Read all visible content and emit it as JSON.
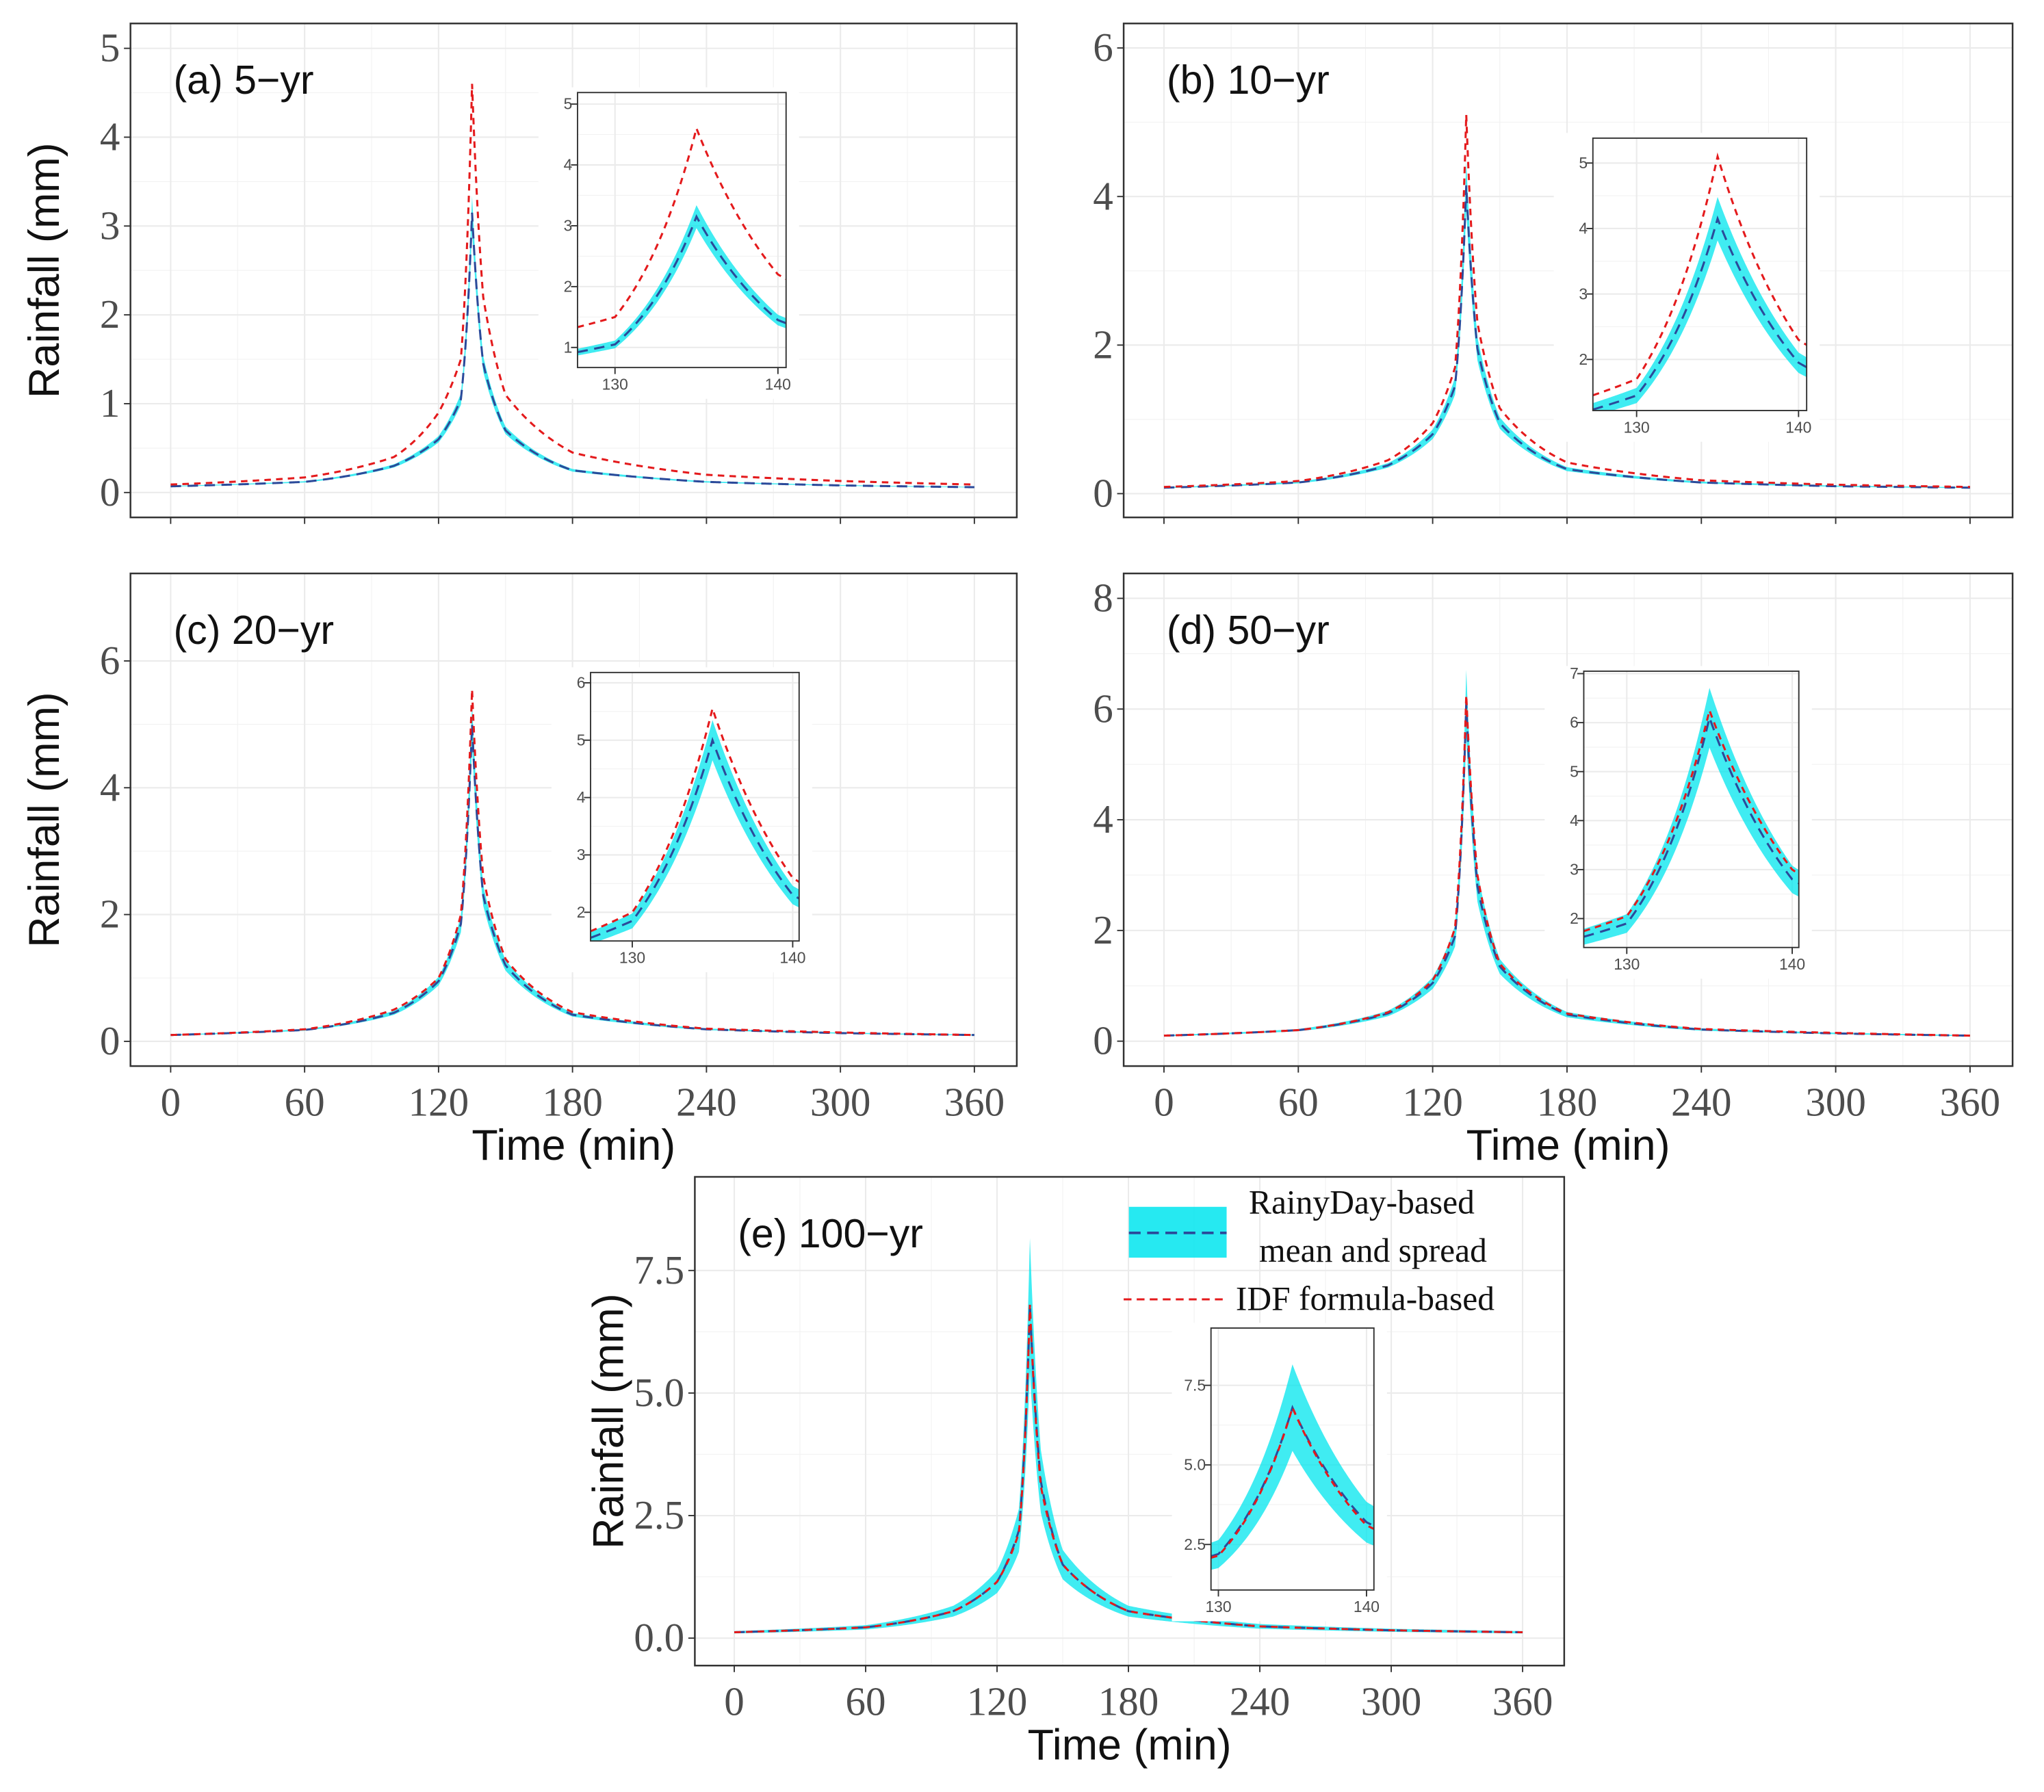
{
  "legend": {
    "rainyday_line1": "RainyDay-based",
    "rainyday_line2": "mean and spread",
    "idf": "IDF formula-based"
  },
  "colors": {
    "band": "#00e5ee",
    "mean": "#2b4a9a",
    "idf": "#e41a1c",
    "grid": "#ebebeb",
    "axis_text": "#4d4d4d"
  },
  "chart_data": [
    {
      "panel": "a",
      "type": "line",
      "title": "(a) 5−yr",
      "xlabel": "",
      "ylabel": "Rainfall (mm)",
      "xlim": [
        -18,
        379
      ],
      "ylim": [
        -0.28,
        5.28
      ],
      "xticks": [
        0,
        60,
        120,
        180,
        240,
        300,
        360
      ],
      "xtick_labels": [],
      "yticks": [
        0,
        1,
        2,
        3,
        4,
        5
      ],
      "ytick_labels": [
        "0",
        "1",
        "2",
        "3",
        "4",
        "5"
      ],
      "x": [
        0,
        60,
        100,
        120,
        130,
        135,
        140,
        150,
        180,
        240,
        300,
        360
      ],
      "series": [
        {
          "name": "RainyDay-based mean",
          "y": [
            0.07,
            0.12,
            0.3,
            0.6,
            1.05,
            3.15,
            1.45,
            0.7,
            0.25,
            0.12,
            0.08,
            0.06
          ]
        },
        {
          "name": "IDF formula-based",
          "y": [
            0.09,
            0.17,
            0.4,
            0.9,
            1.5,
            4.6,
            2.2,
            1.1,
            0.45,
            0.2,
            0.13,
            0.09
          ]
        }
      ],
      "spread_fraction": 0.06,
      "inset": {
        "xlim": [
          127.7,
          140.5
        ],
        "ylim": [
          0.67,
          5.19
        ],
        "xticks": [
          130,
          140
        ],
        "xtick_labels": [
          "130",
          "140"
        ],
        "yticks": [
          1,
          2,
          3,
          4,
          5
        ],
        "ytick_labels": [
          "1",
          "2",
          "3",
          "4",
          "5"
        ]
      }
    },
    {
      "panel": "b",
      "type": "line",
      "title": "(b) 10−yr",
      "xlabel": "",
      "ylabel": "",
      "xlim": [
        -18,
        379
      ],
      "ylim": [
        -0.32,
        6.33
      ],
      "xticks": [
        0,
        60,
        120,
        180,
        240,
        300,
        360
      ],
      "xtick_labels": [],
      "yticks": [
        0,
        2,
        4,
        6
      ],
      "ytick_labels": [
        "0",
        "2",
        "4",
        "6"
      ],
      "x": [
        0,
        60,
        100,
        120,
        130,
        135,
        140,
        150,
        180,
        240,
        300,
        360
      ],
      "series": [
        {
          "name": "RainyDay-based mean",
          "y": [
            0.08,
            0.15,
            0.38,
            0.8,
            1.45,
            4.15,
            1.95,
            0.95,
            0.33,
            0.15,
            0.1,
            0.08
          ]
        },
        {
          "name": "IDF formula-based",
          "y": [
            0.09,
            0.17,
            0.45,
            0.95,
            1.7,
            5.1,
            2.3,
            1.15,
            0.42,
            0.18,
            0.12,
            0.09
          ]
        }
      ],
      "spread_fraction": 0.08,
      "inset": {
        "xlim": [
          127.3,
          140.5
        ],
        "ylim": [
          1.22,
          5.38
        ],
        "xticks": [
          130,
          140
        ],
        "xtick_labels": [
          "130",
          "140"
        ],
        "yticks": [
          2,
          3,
          4,
          5
        ],
        "ytick_labels": [
          "2",
          "3",
          "4",
          "5"
        ]
      }
    },
    {
      "panel": "c",
      "type": "line",
      "title": "(c) 20−yr",
      "xlabel": "Time (min)",
      "ylabel": "Rainfall (mm)",
      "xlim": [
        -18,
        379
      ],
      "ylim": [
        -0.39,
        7.38
      ],
      "xticks": [
        0,
        60,
        120,
        180,
        240,
        300,
        360
      ],
      "xtick_labels": [
        "0",
        "60",
        "120",
        "180",
        "240",
        "300",
        "360"
      ],
      "yticks": [
        0,
        2,
        4,
        6
      ],
      "ytick_labels": [
        "0",
        "2",
        "4",
        "6"
      ],
      "x": [
        0,
        60,
        100,
        120,
        130,
        135,
        140,
        150,
        180,
        240,
        300,
        360
      ],
      "series": [
        {
          "name": "RainyDay-based mean",
          "y": [
            0.1,
            0.18,
            0.45,
            0.95,
            1.85,
            5.0,
            2.3,
            1.2,
            0.42,
            0.19,
            0.13,
            0.1
          ]
        },
        {
          "name": "IDF formula-based",
          "y": [
            0.1,
            0.19,
            0.5,
            1.0,
            2.0,
            5.55,
            2.6,
            1.3,
            0.46,
            0.2,
            0.14,
            0.1
          ]
        }
      ],
      "spread_fraction": 0.07,
      "inset": {
        "xlim": [
          127.4,
          140.4
        ],
        "ylim": [
          1.5,
          6.18
        ],
        "xticks": [
          130,
          140
        ],
        "xtick_labels": [
          "130",
          "140"
        ],
        "yticks": [
          2,
          3,
          4,
          5,
          6
        ],
        "ytick_labels": [
          "2",
          "3",
          "4",
          "5",
          "6"
        ]
      }
    },
    {
      "panel": "d",
      "type": "line",
      "title": "(d) 50−yr",
      "xlabel": "Time (min)",
      "ylabel": "",
      "xlim": [
        -18,
        379
      ],
      "ylim": [
        -0.45,
        8.45
      ],
      "xticks": [
        0,
        60,
        120,
        180,
        240,
        300,
        360
      ],
      "xtick_labels": [
        "0",
        "60",
        "120",
        "180",
        "240",
        "300",
        "360"
      ],
      "yticks": [
        0,
        2,
        4,
        6,
        8
      ],
      "ytick_labels": [
        "0",
        "2",
        "4",
        "6",
        "8"
      ],
      "x": [
        0,
        60,
        100,
        120,
        130,
        135,
        140,
        150,
        180,
        240,
        300,
        360
      ],
      "series": [
        {
          "name": "RainyDay-based mean",
          "y": [
            0.1,
            0.2,
            0.5,
            1.05,
            1.9,
            6.1,
            2.8,
            1.35,
            0.48,
            0.21,
            0.14,
            0.1
          ]
        },
        {
          "name": "IDF formula-based",
          "y": [
            0.1,
            0.2,
            0.52,
            1.1,
            2.05,
            6.25,
            3.0,
            1.4,
            0.5,
            0.22,
            0.15,
            0.1
          ]
        }
      ],
      "spread_fraction": 0.1,
      "inset": {
        "xlim": [
          127.4,
          140.4
        ],
        "ylim": [
          1.41,
          7.05
        ],
        "xticks": [
          130,
          140
        ],
        "xtick_labels": [
          "130",
          "140"
        ],
        "yticks": [
          2,
          3,
          4,
          5,
          6,
          7
        ],
        "ytick_labels": [
          "2",
          "3",
          "4",
          "5",
          "6",
          "7"
        ]
      }
    },
    {
      "panel": "e",
      "type": "line",
      "title": "(e) 100−yr",
      "xlabel": "Time (min)",
      "ylabel": "Rainfall (mm)",
      "xlim": [
        -18,
        379
      ],
      "ylim": [
        -0.56,
        9.41
      ],
      "xticks": [
        0,
        60,
        120,
        180,
        240,
        300,
        360
      ],
      "xtick_labels": [
        "0",
        "60",
        "120",
        "180",
        "240",
        "300",
        "360"
      ],
      "yticks": [
        0,
        2.5,
        5,
        7.5
      ],
      "ytick_labels": [
        "0.0",
        "2.5",
        "5.0",
        "7.5"
      ],
      "x": [
        0,
        60,
        100,
        120,
        130,
        135,
        140,
        150,
        180,
        240,
        300,
        360
      ],
      "series": [
        {
          "name": "RainyDay-based mean",
          "y": [
            0.12,
            0.22,
            0.55,
            1.15,
            2.2,
            6.8,
            3.2,
            1.5,
            0.55,
            0.24,
            0.16,
            0.12
          ]
        },
        {
          "name": "IDF formula-based",
          "y": [
            0.12,
            0.22,
            0.55,
            1.15,
            2.15,
            6.8,
            3.1,
            1.5,
            0.55,
            0.24,
            0.16,
            0.12
          ]
        }
      ],
      "spread_fraction": 0.2,
      "inset": {
        "xlim": [
          129.5,
          140.5
        ],
        "ylim": [
          1.07,
          9.3
        ],
        "xticks": [
          130,
          140
        ],
        "xtick_labels": [
          "130",
          "140"
        ],
        "yticks": [
          2.5,
          5,
          7.5
        ],
        "ytick_labels": [
          "2.5",
          "5.0",
          "7.5"
        ]
      }
    }
  ]
}
